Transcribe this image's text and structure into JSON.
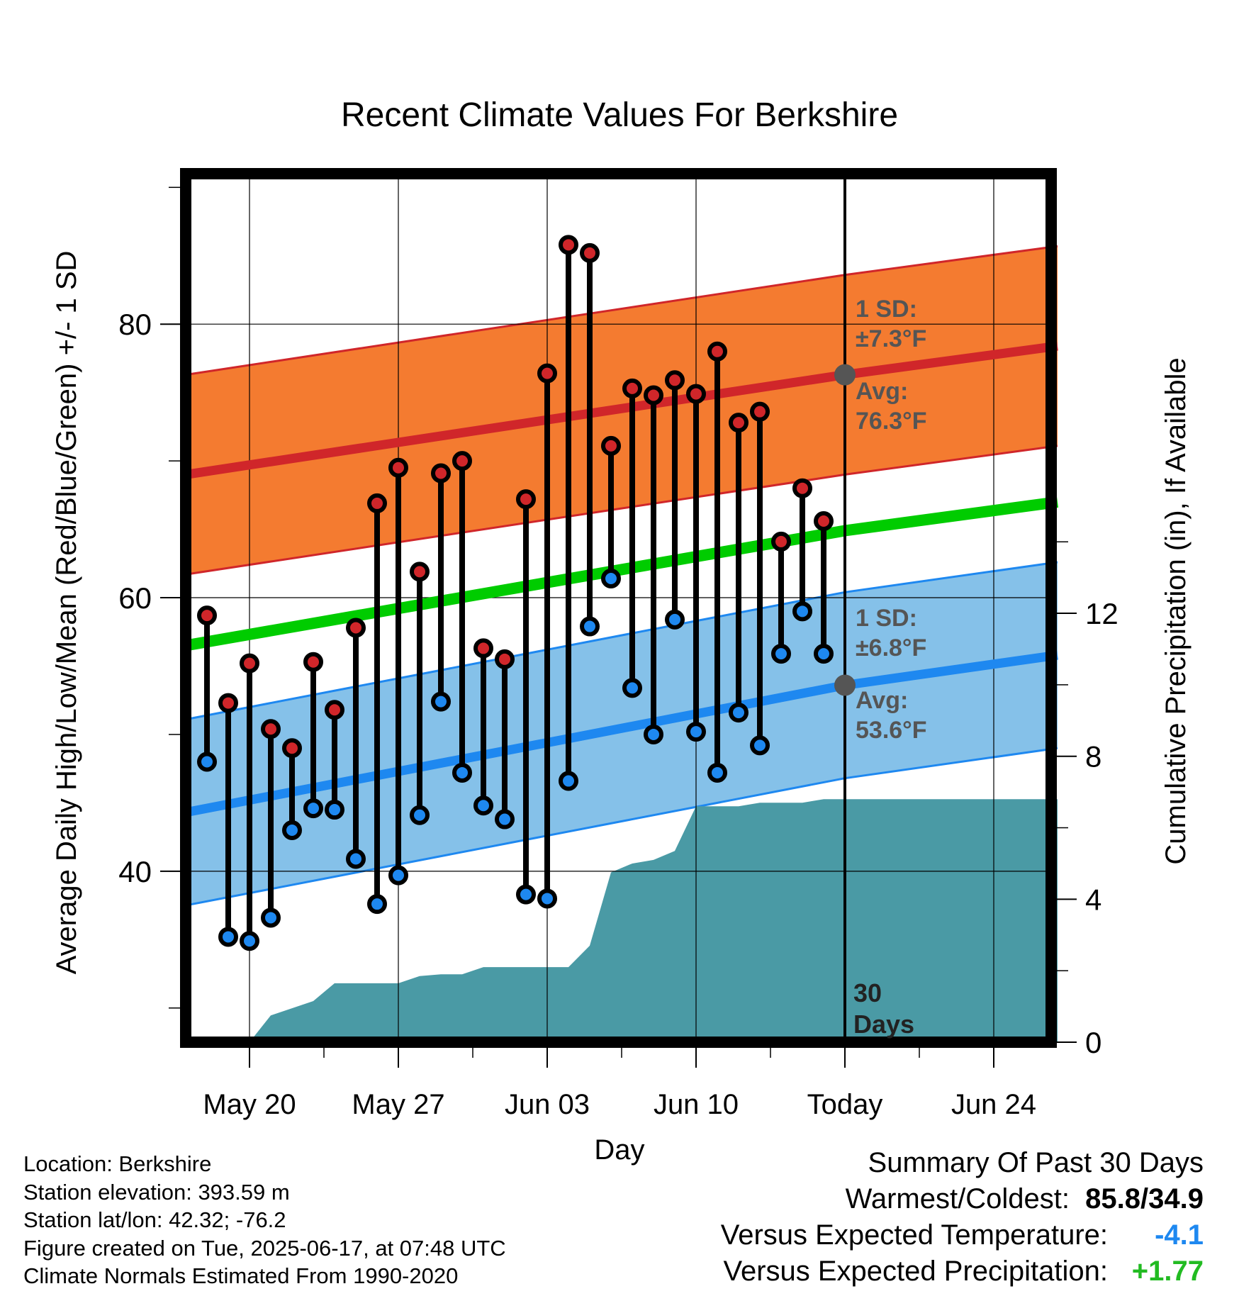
{
  "chart_data": {
    "type": "line",
    "title": "Recent Climate Values For Berkshire",
    "xlabel": "Day",
    "ylabel": "Average Daily High/Low/Mean (Red/Blue/Green) +/- 1 SD",
    "y2label": "Cumulative Precipitation (in), If Available",
    "ylim": [
      27.5,
      91
    ],
    "y2lim": [
      0,
      24.3
    ],
    "yticks": [
      "40",
      "60",
      "80"
    ],
    "y2ticks": [
      "0",
      "4",
      "8",
      "12"
    ],
    "xticks": [
      "May 20",
      "May 27",
      "Jun 03",
      "Jun 10",
      "Today",
      "Jun 24"
    ],
    "grid": true,
    "start_date": "May 17",
    "today": "Jun 17",
    "today_marker_label": "30 Days",
    "high_band": {
      "sd_label": "1 SD:",
      "sd_value": "±7.3°F",
      "avg_label": "Avg:",
      "avg_value": "76.3°F",
      "sd": 7.3,
      "mean_x": [
        "May 17",
        "Jun 17",
        "Jun 27"
      ],
      "mean_y": [
        69.0,
        76.3,
        78.4
      ],
      "color_band": "#f47b30",
      "color_line": "#d0262a"
    },
    "low_band": {
      "sd_label": "1 SD:",
      "sd_value": "±6.8°F",
      "avg_label": "Avg:",
      "avg_value": "53.6°F",
      "sd": 6.8,
      "mean_x": [
        "May 17",
        "Jun 17",
        "Jun 27"
      ],
      "mean_y": [
        44.3,
        53.6,
        55.8
      ],
      "color_band": "#85c1e9",
      "color_line": "#1e88f0"
    },
    "mean_line": {
      "x": [
        "May 17",
        "Jun 17",
        "Jun 27"
      ],
      "y": [
        56.5,
        64.9,
        67.0
      ],
      "color": "#00cc00"
    },
    "daily": {
      "x": [
        "May 18",
        "May 19",
        "May 20",
        "May 21",
        "May 22",
        "May 23",
        "May 24",
        "May 25",
        "May 26",
        "May 27",
        "May 28",
        "May 29",
        "May 30",
        "May 31",
        "Jun 01",
        "Jun 02",
        "Jun 03",
        "Jun 04",
        "Jun 05",
        "Jun 06",
        "Jun 07",
        "Jun 08",
        "Jun 09",
        "Jun 10",
        "Jun 11",
        "Jun 12",
        "Jun 13",
        "Jun 14",
        "Jun 15",
        "Jun 16"
      ],
      "high": [
        58.7,
        52.3,
        55.2,
        50.4,
        49.0,
        55.3,
        51.8,
        57.8,
        66.9,
        69.5,
        61.9,
        69.1,
        70.0,
        56.3,
        55.5,
        67.2,
        76.4,
        85.8,
        85.2,
        71.1,
        75.3,
        74.8,
        75.9,
        74.9,
        78.0,
        72.8,
        73.6,
        64.1,
        68.0,
        65.6
      ],
      "low": [
        48.0,
        35.2,
        34.9,
        36.6,
        43.0,
        44.6,
        44.5,
        40.9,
        37.6,
        39.7,
        44.1,
        52.4,
        47.2,
        44.8,
        43.8,
        38.3,
        38.0,
        46.6,
        57.9,
        61.4,
        53.4,
        50.0,
        58.4,
        50.2,
        47.2,
        51.6,
        49.2,
        55.9,
        59.0,
        55.9
      ],
      "color_high": "#d0262a",
      "color_low": "#1e88f0"
    },
    "precip": {
      "x": [
        "May 17",
        "May 20",
        "May 21",
        "May 22",
        "May 23",
        "May 24",
        "May 25",
        "May 26",
        "May 27",
        "May 28",
        "May 29",
        "May 30",
        "May 31",
        "Jun 01",
        "Jun 02",
        "Jun 03",
        "Jun 04",
        "Jun 05",
        "Jun 06",
        "Jun 07",
        "Jun 08",
        "Jun 09",
        "Jun 10",
        "Jun 11",
        "Jun 12",
        "Jun 13",
        "Jun 14",
        "Jun 15",
        "Jun 16",
        "Jun 27"
      ],
      "y": [
        0,
        0,
        0.75,
        0.95,
        1.15,
        1.65,
        1.65,
        1.65,
        1.65,
        1.85,
        1.9,
        1.9,
        2.1,
        2.1,
        2.1,
        2.1,
        2.1,
        2.7,
        4.75,
        5.0,
        5.1,
        5.35,
        6.6,
        6.6,
        6.6,
        6.7,
        6.7,
        6.7,
        6.8,
        6.8
      ],
      "color": "#4a9aa5"
    }
  },
  "footer": {
    "location": "Location: Berkshire",
    "elevation": "Station elevation: 393.59 m",
    "latlon": "Station lat/lon: 42.32; -76.2",
    "created": "Figure created on Tue, 2025-06-17, at 07:48 UTC",
    "normals": "Climate Normals Estimated From 1990-2020"
  },
  "summary": {
    "title": "Summary Of Past 30 Days",
    "warm_cold_label": "Warmest/Coldest:",
    "warm_cold_value": "85.8/34.9",
    "temp_label": "Versus Expected Temperature:",
    "temp_value": "-4.1",
    "temp_color": "#1e88f0",
    "precip_label": "Versus Expected Precipitation:",
    "precip_value": "+1.77",
    "precip_color": "#22bb22"
  }
}
